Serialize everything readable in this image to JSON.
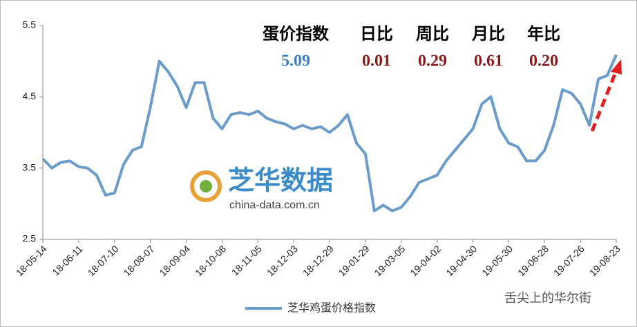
{
  "chart_data": {
    "type": "line",
    "categories": [
      "18-05-14",
      null,
      null,
      null,
      "18-06-11",
      null,
      null,
      null,
      "18-07-10",
      null,
      null,
      null,
      "18-08-07",
      null,
      null,
      null,
      "18-09-04",
      null,
      null,
      null,
      "18-10-08",
      null,
      null,
      null,
      "18-11-05",
      null,
      null,
      null,
      "18-12-03",
      null,
      null,
      null,
      "18-12-29",
      null,
      null,
      null,
      "19-01-29",
      null,
      null,
      null,
      "19-03-05",
      null,
      null,
      null,
      "19-04-02",
      null,
      null,
      null,
      "19-04-30",
      null,
      null,
      null,
      "19-05-30",
      null,
      null,
      null,
      "19-06-28",
      null,
      null,
      null,
      "19-07-26",
      null,
      null,
      null,
      "19-08-23"
    ],
    "series": [
      {
        "name": "芝华鸡蛋价格指数",
        "color": "#6a9bc9",
        "values": [
          3.63,
          3.5,
          3.58,
          3.6,
          3.52,
          3.5,
          3.4,
          3.12,
          3.15,
          3.55,
          3.75,
          3.8,
          4.35,
          5.0,
          4.85,
          4.65,
          4.35,
          4.7,
          4.7,
          4.2,
          4.05,
          4.25,
          4.28,
          4.25,
          4.3,
          4.2,
          4.15,
          4.12,
          4.05,
          4.1,
          4.05,
          4.08,
          4.0,
          4.1,
          4.25,
          3.85,
          3.7,
          2.9,
          2.98,
          2.9,
          2.95,
          3.1,
          3.3,
          3.35,
          3.4,
          3.6,
          3.75,
          3.9,
          4.05,
          4.4,
          4.5,
          4.05,
          3.85,
          3.8,
          3.6,
          3.6,
          3.75,
          4.1,
          4.6,
          4.55,
          4.4,
          4.1,
          4.75,
          4.8,
          5.09
        ]
      }
    ],
    "ylim": [
      2.5,
      5.5
    ],
    "yticks": [
      2.5,
      3.5,
      4.5,
      5.5
    ],
    "grid": false,
    "legend": "bottom",
    "index_table": {
      "headers": [
        "蛋价指数",
        "日比",
        "周比",
        "月比",
        "年比"
      ],
      "values": [
        "5.09",
        "0.01",
        "0.29",
        "0.61",
        "0.20"
      ]
    },
    "logo": {
      "name": "芝华数据",
      "url": "china-data.com.cn"
    },
    "watermark": "舌尖上的华尔街"
  }
}
